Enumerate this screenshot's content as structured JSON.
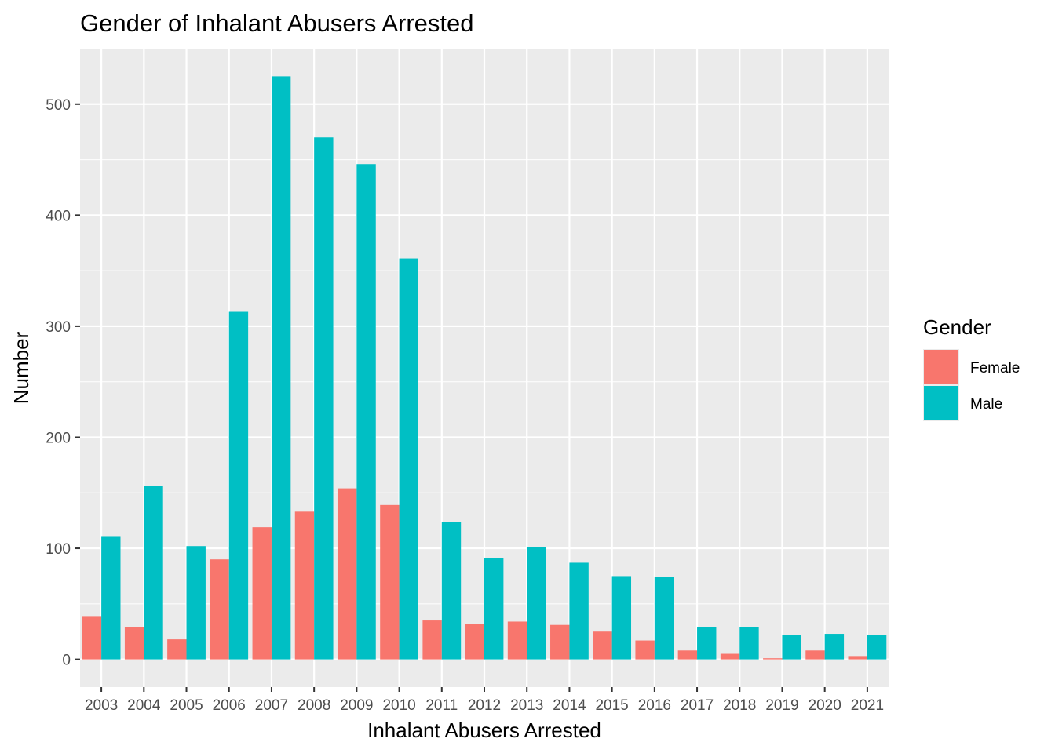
{
  "chart_data": {
    "type": "bar",
    "title": "Gender of Inhalant Abusers Arrested",
    "xlabel": "Inhalant Abusers Arrested",
    "ylabel": "Number",
    "categories": [
      "2003",
      "2004",
      "2005",
      "2006",
      "2007",
      "2008",
      "2009",
      "2010",
      "2011",
      "2012",
      "2013",
      "2014",
      "2015",
      "2016",
      "2017",
      "2018",
      "2019",
      "2020",
      "2021"
    ],
    "series": [
      {
        "name": "Female",
        "color": "#F8766D",
        "values": [
          39,
          29,
          18,
          90,
          119,
          133,
          154,
          139,
          35,
          32,
          34,
          31,
          25,
          17,
          8,
          5,
          1,
          8,
          3
        ]
      },
      {
        "name": "Male",
        "color": "#00BFC4",
        "values": [
          111,
          156,
          102,
          313,
          525,
          470,
          446,
          361,
          124,
          91,
          101,
          87,
          75,
          74,
          29,
          29,
          22,
          23,
          22
        ]
      }
    ],
    "ylim": [
      -25,
      550
    ],
    "yticks": [
      0,
      100,
      200,
      300,
      400,
      500
    ],
    "grid": true,
    "legend": {
      "title": "Gender",
      "position": "right"
    },
    "panel_background": "#EBEBEB"
  }
}
